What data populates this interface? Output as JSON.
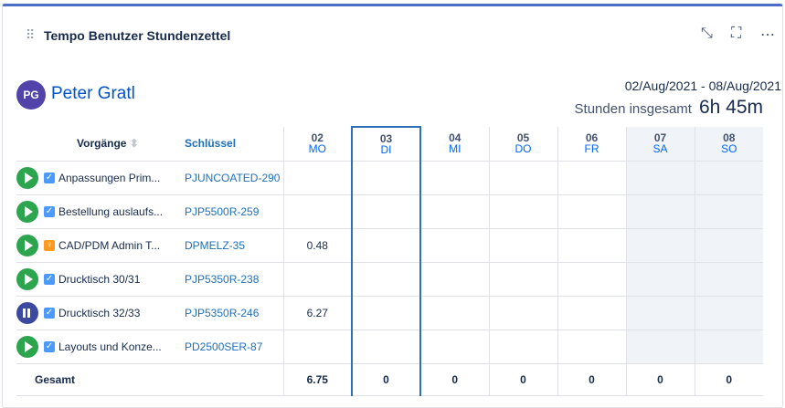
{
  "header": {
    "title": "Tempo Benutzer Stundenzettel",
    "collapse_icon": "collapse-icon",
    "fullscreen_icon": "fullscreen-icon",
    "more_icon": "more-icon"
  },
  "user": {
    "initials": "PG",
    "name": "Peter Gratl"
  },
  "period": {
    "range": "02/Aug/2021 - 08/Aug/2021",
    "total_label": "Stunden insgesamt",
    "total_value": "6h 45m"
  },
  "columns": {
    "issues": "Vorgänge",
    "key": "Schlüssel"
  },
  "days": [
    {
      "num": "02",
      "wd": "MO"
    },
    {
      "num": "03",
      "wd": "DI"
    },
    {
      "num": "04",
      "wd": "MI"
    },
    {
      "num": "05",
      "wd": "DO"
    },
    {
      "num": "06",
      "wd": "FR"
    },
    {
      "num": "07",
      "wd": "SA"
    },
    {
      "num": "08",
      "wd": "SO"
    }
  ],
  "rows": [
    {
      "state": "play",
      "type": "task",
      "summary": "Anpassungen Prim...",
      "key": "PJUNCOATED-290",
      "values": [
        "",
        "",
        "",
        "",
        "",
        "",
        ""
      ]
    },
    {
      "state": "play",
      "type": "task",
      "summary": "Bestellung auslaufs...",
      "key": "PJP5500R-259",
      "values": [
        "",
        "",
        "",
        "",
        "",
        "",
        ""
      ]
    },
    {
      "state": "play",
      "type": "idea",
      "summary": "CAD/PDM Admin T...",
      "key": "DPMELZ-35",
      "values": [
        "0.48",
        "",
        "",
        "",
        "",
        "",
        ""
      ]
    },
    {
      "state": "play",
      "type": "task",
      "summary": "Drucktisch 30/31",
      "key": "PJP5350R-238",
      "values": [
        "",
        "",
        "",
        "",
        "",
        "",
        ""
      ]
    },
    {
      "state": "pause",
      "type": "task",
      "summary": "Drucktisch 32/33",
      "key": "PJP5350R-246",
      "values": [
        "6.27",
        "",
        "",
        "",
        "",
        "",
        ""
      ]
    },
    {
      "state": "play",
      "type": "task",
      "summary": "Layouts und Konze...",
      "key": "PD2500SER-87",
      "values": [
        "",
        "",
        "",
        "",
        "",
        "",
        ""
      ]
    }
  ],
  "footer": {
    "label": "Gesamt",
    "totals": [
      "6.75",
      "0",
      "0",
      "0",
      "0",
      "0",
      "0"
    ]
  }
}
